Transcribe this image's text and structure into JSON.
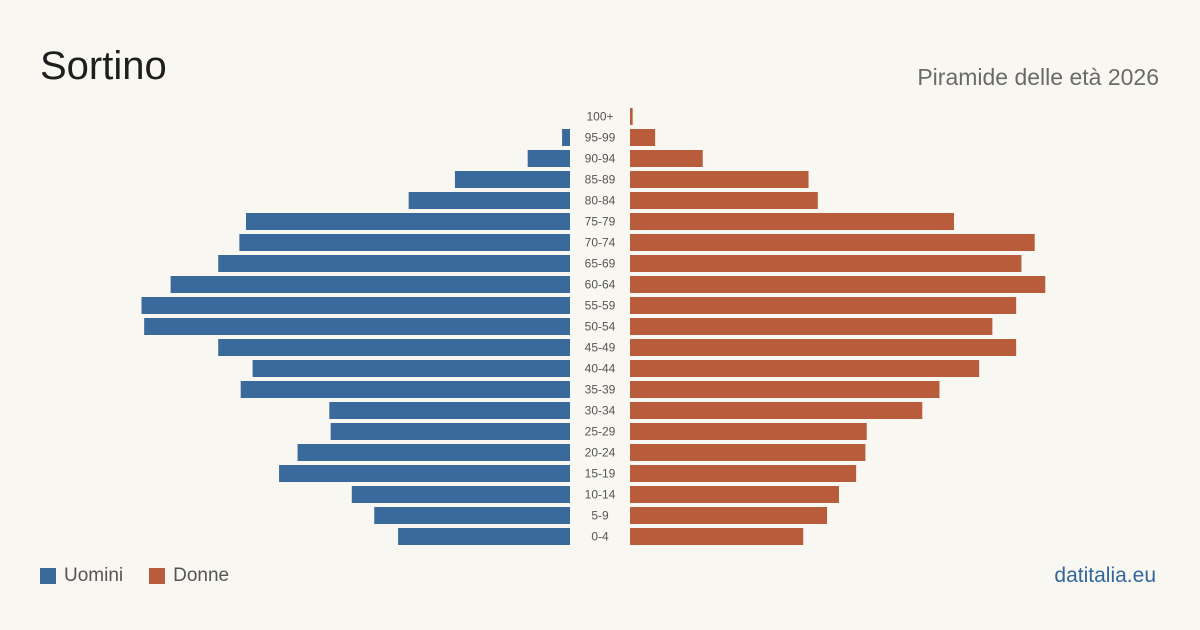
{
  "header": {
    "title": "Sortino",
    "subtitle": "Piramide delle età 2026"
  },
  "legend": {
    "items": [
      {
        "label": "Uomini",
        "color": "#3a6a9b"
      },
      {
        "label": "Donne",
        "color": "#b85c3c"
      }
    ]
  },
  "footer": {
    "brand": "datitalia.eu"
  },
  "chart_data": {
    "type": "bar",
    "orientation": "horizontal-pyramid",
    "categories": [
      "100+",
      "95-99",
      "90-94",
      "85-89",
      "80-84",
      "75-79",
      "70-74",
      "65-69",
      "60-64",
      "55-59",
      "50-54",
      "45-49",
      "40-44",
      "35-39",
      "30-34",
      "25-29",
      "20-24",
      "15-19",
      "10-14",
      "5-9",
      "0-4"
    ],
    "series": [
      {
        "name": "Uomini",
        "color": "#3a6a9b",
        "values": [
          0,
          6,
          32,
          87,
          122,
          245,
          250,
          266,
          302,
          324,
          322,
          266,
          240,
          249,
          182,
          181,
          206,
          220,
          165,
          148,
          130
        ]
      },
      {
        "name": "Donne",
        "color": "#b85c3c",
        "values": [
          2,
          19,
          55,
          135,
          142,
          245,
          306,
          296,
          314,
          292,
          274,
          292,
          264,
          234,
          221,
          179,
          178,
          171,
          158,
          149,
          131
        ]
      }
    ]
  }
}
